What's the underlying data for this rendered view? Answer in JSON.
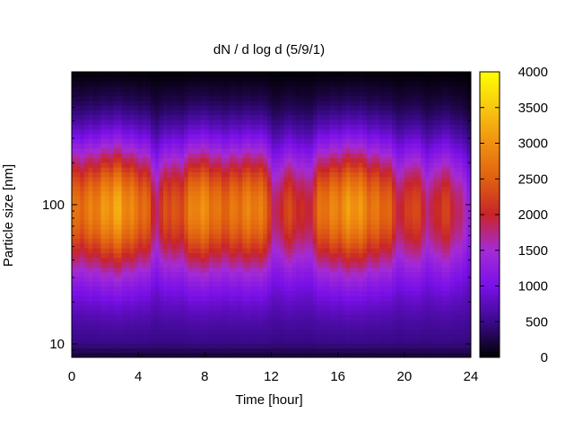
{
  "chart_data": {
    "type": "heatmap",
    "title": "dN / d log d (5/9/1)",
    "xlabel": "Time [hour]",
    "ylabel": "Particle size [nm]",
    "x_range": [
      0,
      24
    ],
    "x_ticks": [
      0,
      4,
      8,
      12,
      16,
      20,
      24
    ],
    "y_scale": "log",
    "y_range": [
      8,
      900
    ],
    "y_ticks": [
      10,
      100
    ],
    "colorbar": {
      "range": [
        0,
        4000
      ],
      "ticks": [
        0,
        500,
        1000,
        1500,
        2000,
        2500,
        3000,
        3500,
        4000
      ],
      "colormap": "gnuplot",
      "colors": [
        "#000000",
        "#3b0a8c",
        "#7a10e8",
        "#a42bd6",
        "#c8242a",
        "#e06010",
        "#f09010",
        "#f8c810",
        "#ffff00"
      ]
    },
    "grid": false,
    "legend": "none",
    "dominant_feature": {
      "peak_size_nm": 100,
      "peak_value": 2800,
      "notes": "broad band 50-200 nm, strongest near 2-3 h, 8 h and 17 h"
    }
  }
}
